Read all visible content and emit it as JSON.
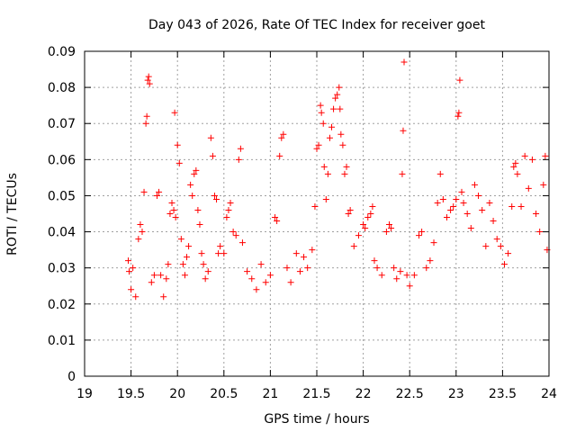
{
  "chart_data": {
    "type": "scatter",
    "title": "Day 043 of 2026, Rate Of TEC Index for receiver goet",
    "xlabel": "GPS time / hours",
    "ylabel": "ROTI / TECUs",
    "xlim": [
      19,
      24
    ],
    "ylim": [
      0,
      0.09
    ],
    "x_ticks": [
      "19",
      "19.5",
      "20",
      "20.5",
      "21",
      "21.5",
      "22",
      "22.5",
      "23",
      "23.5",
      "24"
    ],
    "y_ticks": [
      "0",
      "0.01",
      "0.02",
      "0.03",
      "0.04",
      "0.05",
      "0.06",
      "0.07",
      "0.08",
      "0.09"
    ],
    "grid": true,
    "marker": "+",
    "marker_color": "#ff0000",
    "series": [
      {
        "points": [
          [
            19.47,
            0.032
          ],
          [
            19.48,
            0.029
          ],
          [
            19.5,
            0.024
          ],
          [
            19.52,
            0.03
          ],
          [
            19.55,
            0.022
          ],
          [
            19.58,
            0.038
          ],
          [
            19.6,
            0.042
          ],
          [
            19.62,
            0.04
          ],
          [
            19.64,
            0.051
          ],
          [
            19.66,
            0.07
          ],
          [
            19.67,
            0.072
          ],
          [
            19.68,
            0.082
          ],
          [
            19.69,
            0.083
          ],
          [
            19.7,
            0.081
          ],
          [
            19.72,
            0.026
          ],
          [
            19.75,
            0.028
          ],
          [
            19.78,
            0.05
          ],
          [
            19.8,
            0.051
          ],
          [
            19.82,
            0.028
          ],
          [
            19.85,
            0.022
          ],
          [
            19.88,
            0.027
          ],
          [
            19.9,
            0.031
          ],
          [
            19.92,
            0.045
          ],
          [
            19.94,
            0.048
          ],
          [
            19.96,
            0.046
          ],
          [
            19.97,
            0.073
          ],
          [
            19.98,
            0.044
          ],
          [
            20.0,
            0.064
          ],
          [
            20.02,
            0.059
          ],
          [
            20.04,
            0.038
          ],
          [
            20.06,
            0.031
          ],
          [
            20.08,
            0.028
          ],
          [
            20.1,
            0.033
          ],
          [
            20.12,
            0.036
          ],
          [
            20.14,
            0.053
          ],
          [
            20.16,
            0.05
          ],
          [
            20.18,
            0.056
          ],
          [
            20.2,
            0.057
          ],
          [
            20.22,
            0.046
          ],
          [
            20.24,
            0.042
          ],
          [
            20.26,
            0.034
          ],
          [
            20.28,
            0.031
          ],
          [
            20.3,
            0.027
          ],
          [
            20.33,
            0.029
          ],
          [
            20.36,
            0.066
          ],
          [
            20.38,
            0.061
          ],
          [
            20.4,
            0.05
          ],
          [
            20.42,
            0.049
          ],
          [
            20.44,
            0.034
          ],
          [
            20.46,
            0.036
          ],
          [
            20.5,
            0.034
          ],
          [
            20.53,
            0.044
          ],
          [
            20.55,
            0.046
          ],
          [
            20.57,
            0.048
          ],
          [
            20.6,
            0.04
          ],
          [
            20.63,
            0.039
          ],
          [
            20.66,
            0.06
          ],
          [
            20.68,
            0.063
          ],
          [
            20.7,
            0.037
          ],
          [
            20.75,
            0.029
          ],
          [
            20.8,
            0.027
          ],
          [
            20.85,
            0.024
          ],
          [
            20.9,
            0.031
          ],
          [
            20.95,
            0.026
          ],
          [
            21.0,
            0.028
          ],
          [
            21.05,
            0.044
          ],
          [
            21.07,
            0.043
          ],
          [
            21.1,
            0.061
          ],
          [
            21.12,
            0.066
          ],
          [
            21.14,
            0.067
          ],
          [
            21.18,
            0.03
          ],
          [
            21.22,
            0.026
          ],
          [
            21.28,
            0.034
          ],
          [
            21.32,
            0.029
          ],
          [
            21.36,
            0.033
          ],
          [
            21.4,
            0.03
          ],
          [
            21.45,
            0.035
          ],
          [
            21.48,
            0.047
          ],
          [
            21.5,
            0.063
          ],
          [
            21.52,
            0.064
          ],
          [
            21.54,
            0.075
          ],
          [
            21.55,
            0.073
          ],
          [
            21.57,
            0.07
          ],
          [
            21.58,
            0.058
          ],
          [
            21.6,
            0.049
          ],
          [
            21.62,
            0.056
          ],
          [
            21.64,
            0.066
          ],
          [
            21.66,
            0.069
          ],
          [
            21.68,
            0.074
          ],
          [
            21.7,
            0.077
          ],
          [
            21.72,
            0.078
          ],
          [
            21.74,
            0.08
          ],
          [
            21.75,
            0.074
          ],
          [
            21.76,
            0.067
          ],
          [
            21.78,
            0.064
          ],
          [
            21.8,
            0.056
          ],
          [
            21.82,
            0.058
          ],
          [
            21.84,
            0.045
          ],
          [
            21.86,
            0.046
          ],
          [
            21.9,
            0.036
          ],
          [
            21.95,
            0.039
          ],
          [
            22.0,
            0.042
          ],
          [
            22.02,
            0.041
          ],
          [
            22.05,
            0.044
          ],
          [
            22.08,
            0.045
          ],
          [
            22.1,
            0.047
          ],
          [
            22.12,
            0.032
          ],
          [
            22.15,
            0.03
          ],
          [
            22.2,
            0.028
          ],
          [
            22.25,
            0.04
          ],
          [
            22.28,
            0.042
          ],
          [
            22.3,
            0.041
          ],
          [
            22.33,
            0.03
          ],
          [
            22.36,
            0.027
          ],
          [
            22.4,
            0.029
          ],
          [
            22.42,
            0.056
          ],
          [
            22.43,
            0.068
          ],
          [
            22.44,
            0.087
          ],
          [
            22.47,
            0.028
          ],
          [
            22.5,
            0.025
          ],
          [
            22.55,
            0.028
          ],
          [
            22.6,
            0.039
          ],
          [
            22.63,
            0.04
          ],
          [
            22.68,
            0.03
          ],
          [
            22.72,
            0.032
          ],
          [
            22.76,
            0.037
          ],
          [
            22.8,
            0.048
          ],
          [
            22.83,
            0.056
          ],
          [
            22.86,
            0.049
          ],
          [
            22.9,
            0.044
          ],
          [
            22.94,
            0.046
          ],
          [
            22.97,
            0.047
          ],
          [
            23.0,
            0.049
          ],
          [
            23.02,
            0.072
          ],
          [
            23.03,
            0.073
          ],
          [
            23.04,
            0.082
          ],
          [
            23.06,
            0.051
          ],
          [
            23.08,
            0.048
          ],
          [
            23.12,
            0.045
          ],
          [
            23.16,
            0.041
          ],
          [
            23.2,
            0.053
          ],
          [
            23.24,
            0.05
          ],
          [
            23.28,
            0.046
          ],
          [
            23.32,
            0.036
          ],
          [
            23.36,
            0.048
          ],
          [
            23.4,
            0.043
          ],
          [
            23.44,
            0.038
          ],
          [
            23.48,
            0.036
          ],
          [
            23.52,
            0.031
          ],
          [
            23.56,
            0.034
          ],
          [
            23.6,
            0.047
          ],
          [
            23.62,
            0.058
          ],
          [
            23.64,
            0.059
          ],
          [
            23.66,
            0.056
          ],
          [
            23.7,
            0.047
          ],
          [
            23.74,
            0.061
          ],
          [
            23.78,
            0.052
          ],
          [
            23.82,
            0.06
          ],
          [
            23.86,
            0.045
          ],
          [
            23.9,
            0.04
          ],
          [
            23.94,
            0.053
          ],
          [
            23.96,
            0.061
          ],
          [
            23.98,
            0.035
          ]
        ]
      }
    ]
  }
}
